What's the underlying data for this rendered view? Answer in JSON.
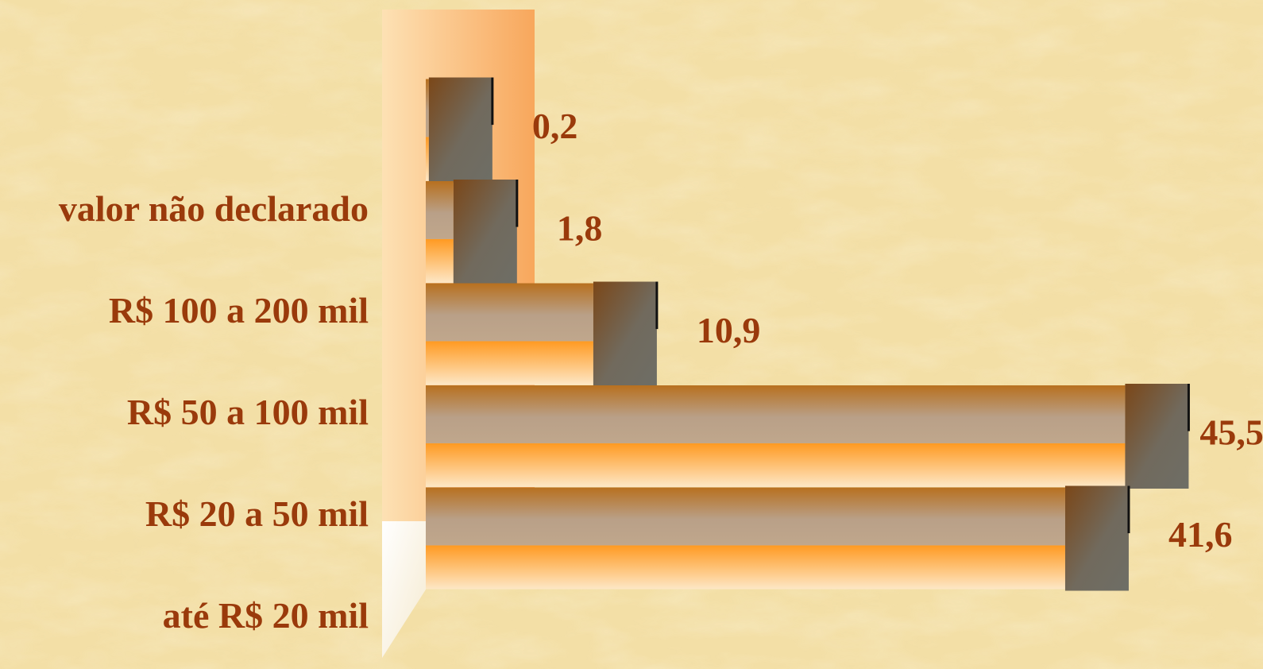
{
  "chart_data": {
    "type": "bar",
    "orientation": "horizontal",
    "categories": [
      "valor não declarado",
      "R$ 100 a 200 mil",
      "R$ 50 a 100 mil",
      "R$ 20 a 50 mil",
      "até R$ 20 mil"
    ],
    "values": [
      0.2,
      1.8,
      10.9,
      45.5,
      41.6
    ],
    "value_labels": [
      "0,2",
      "1,8",
      "10,9",
      "45,5",
      "41,6"
    ],
    "xlim": [
      0,
      50
    ],
    "grid": false,
    "legend": "none",
    "style": "3d"
  },
  "colors": {
    "background": "#f3dfa6",
    "label_text": "#9a3a0b",
    "bar_top": "#b8772a",
    "bar_mid": "#b8a48a",
    "bar_bottom": "#ffa637",
    "bar_end_dark": "#7a4a1e",
    "bar_end_light": "#6f6e62",
    "back_wall": "#fbbf7c"
  }
}
